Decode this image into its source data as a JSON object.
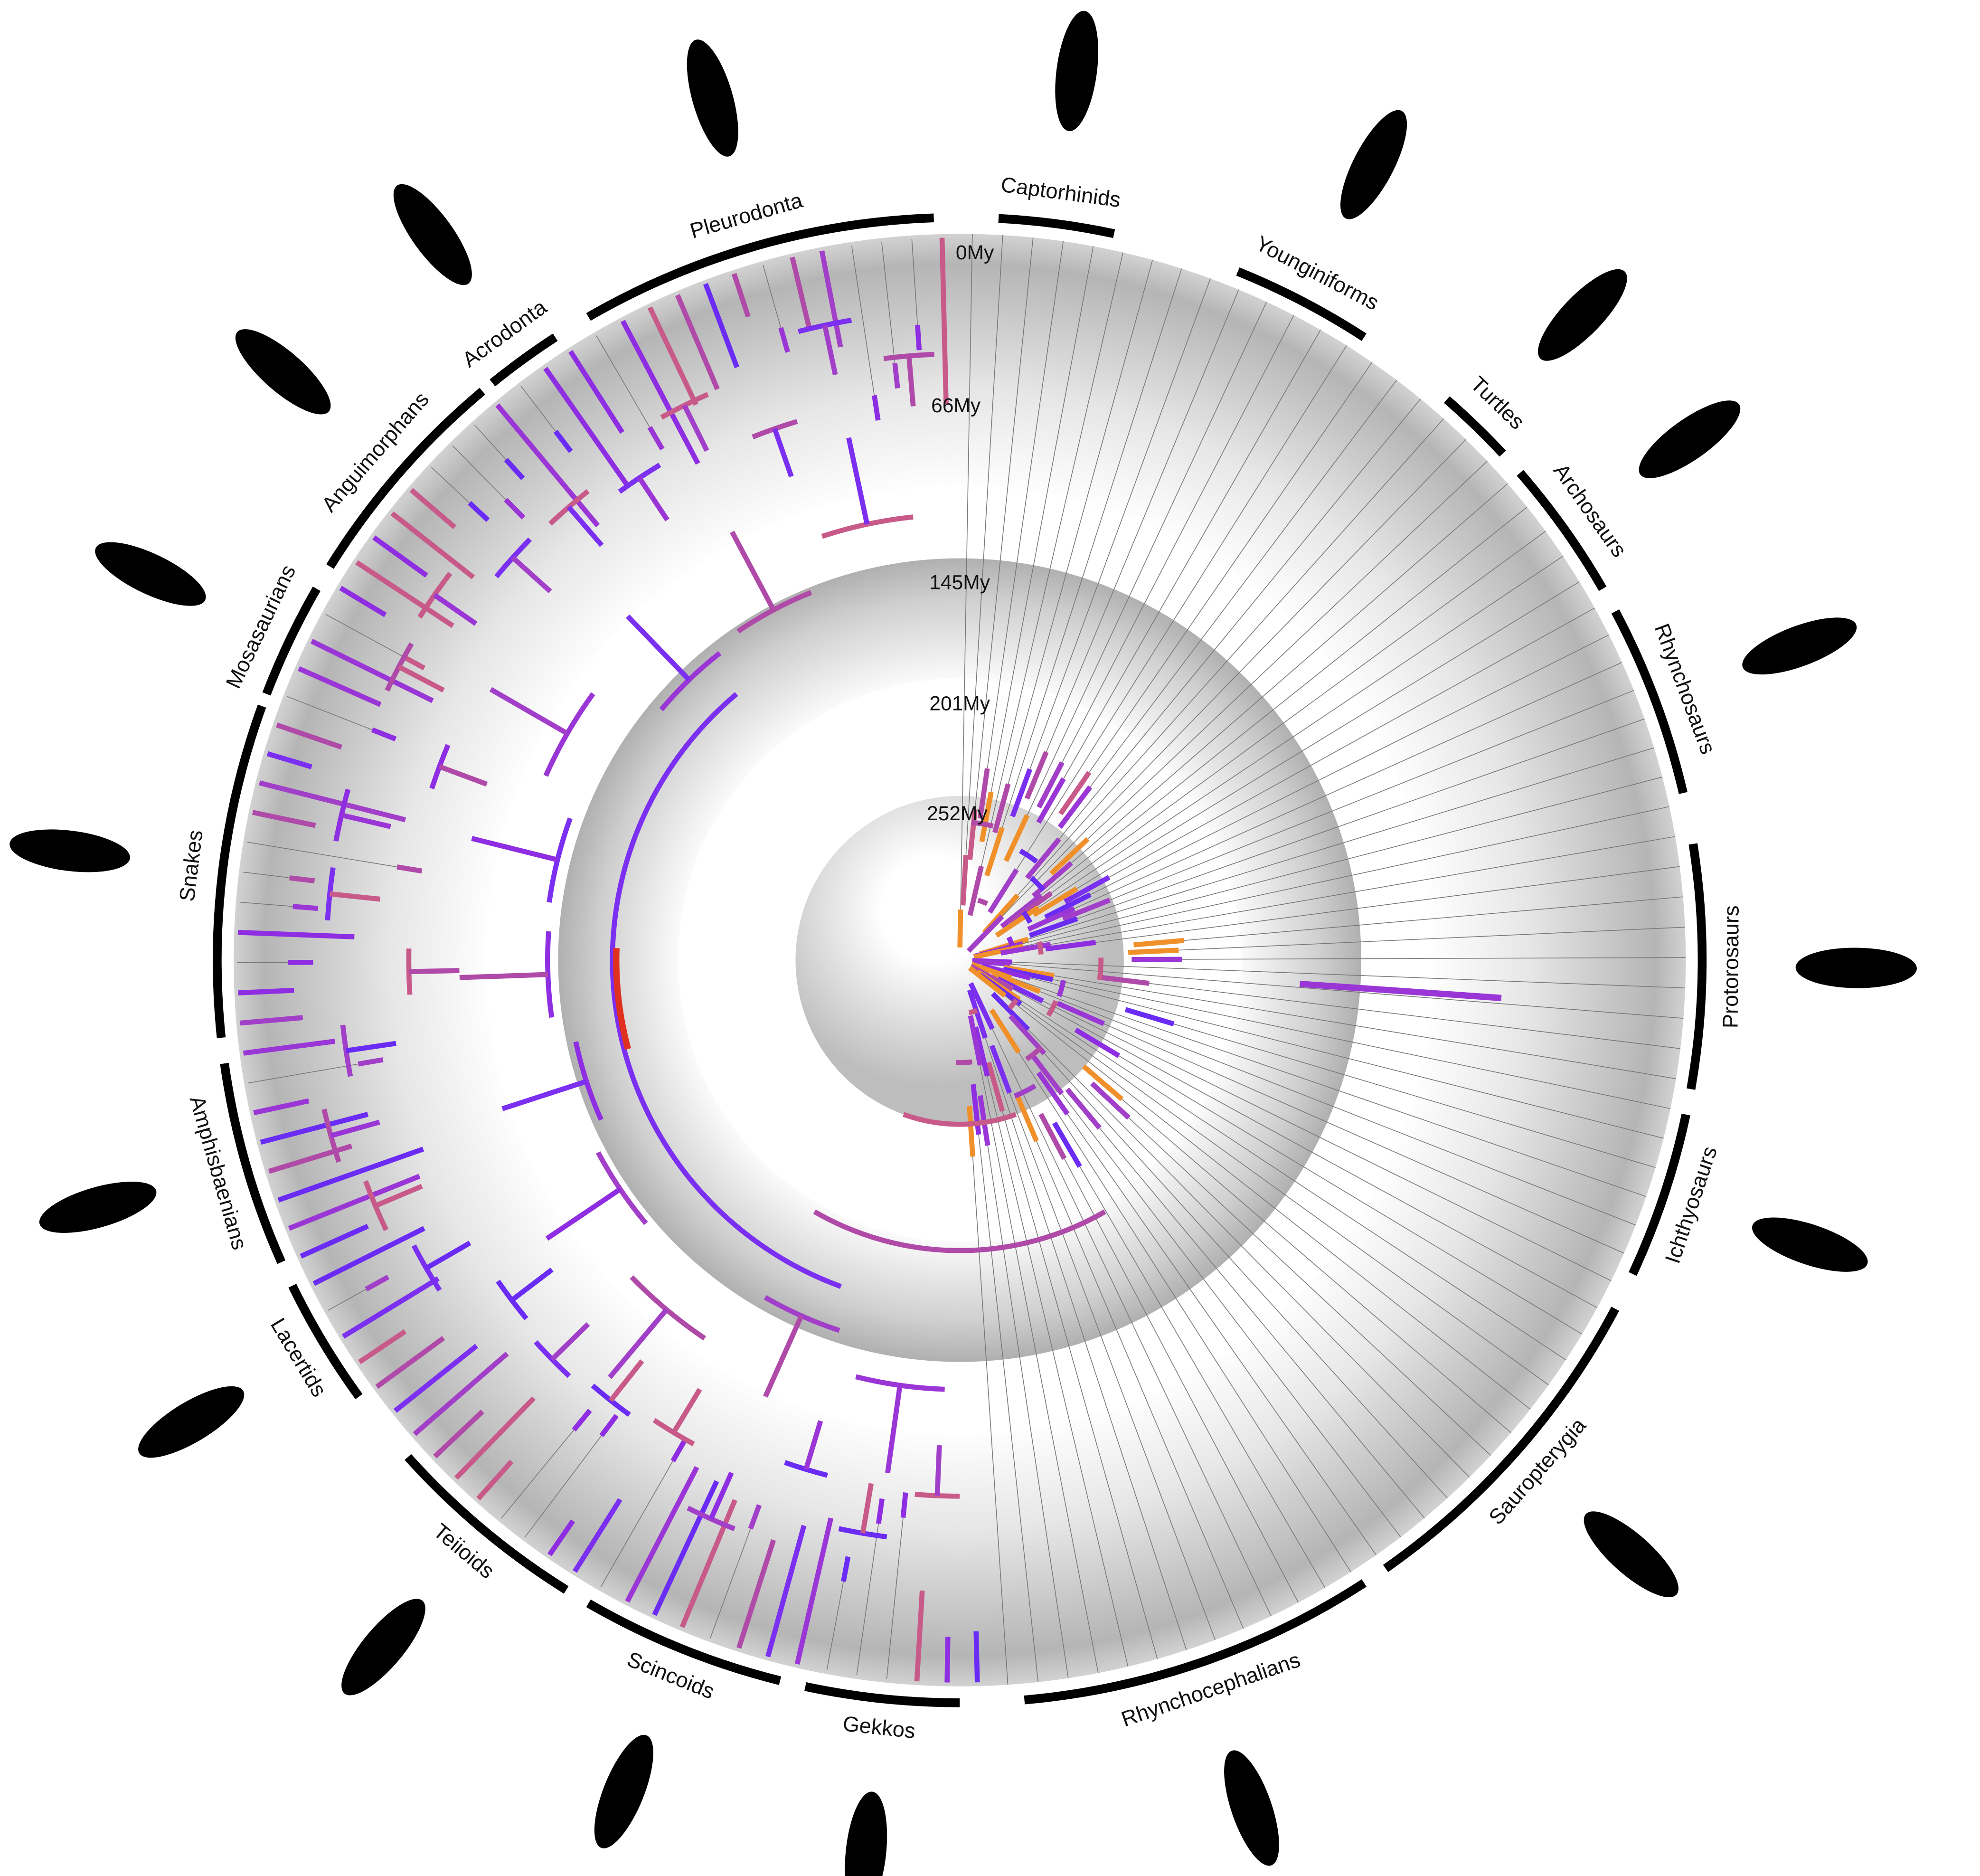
{
  "time_labels": [
    "0My",
    "66My",
    "145My",
    "201My",
    "252My"
  ],
  "clades": [
    "Captorhinids",
    "Younginiforms",
    "Turtles",
    "Archosaurs",
    "Rhynchosaurs",
    "Protorosaurs",
    "Ichthyosaurs",
    "Sauropterygia",
    "Rhynchocephalians",
    "Gekkos",
    "Scincoids",
    "Teiioids",
    "Lacertids",
    "Amphisbaenians",
    "Snakes",
    "Mosasaurians",
    "Anguimorphans",
    "Acrodonta",
    "Pleurodonta"
  ]
}
